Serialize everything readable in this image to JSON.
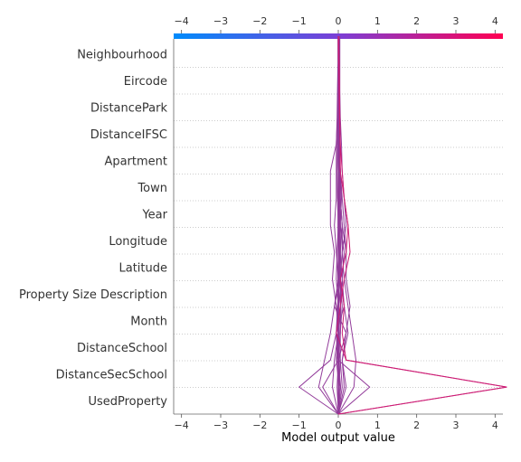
{
  "chart_data": {
    "type": "line",
    "xlabel": "Model output value",
    "xlim": [
      -4.2,
      4.2
    ],
    "xticks": [
      -4,
      -3,
      -2,
      -1,
      0,
      1,
      2,
      3,
      4
    ],
    "features": [
      "Neighbourhood",
      "Eircode",
      "DistancePark",
      "DistanceIFSC",
      "Apartment",
      "Town",
      "Year",
      "Longitude",
      "Latitude",
      "Property Size Description",
      "Month",
      "DistanceSchool",
      "DistanceSecSchool",
      "UsedProperty"
    ],
    "base_value": 0.0,
    "colorscale": [
      "#008bfb",
      "#ff0052"
    ],
    "grid": "dotted",
    "paths": [
      [
        0.0,
        0.0,
        0.0,
        0.01,
        0.01,
        0.0,
        0.0,
        0.0,
        0.0,
        0.0,
        0.0,
        0.01,
        0.0,
        0.0,
        0.0
      ],
      [
        0.0,
        0.0,
        0.01,
        0.0,
        0.0,
        0.01,
        0.01,
        0.0,
        0.01,
        0.0,
        0.0,
        0.0,
        0.01,
        0.01,
        0.0
      ],
      [
        0.0,
        0.0,
        0.01,
        0.02,
        0.01,
        0.02,
        0.01,
        0.02,
        0.02,
        0.01,
        0.01,
        0.01,
        0.02,
        0.02,
        0.02
      ],
      [
        0.0,
        0.01,
        0.02,
        0.0,
        0.01,
        0.02,
        0.03,
        0.03,
        0.02,
        0.02,
        0.03,
        0.03,
        0.02,
        0.03,
        0.03
      ],
      [
        0.0,
        0.0,
        0.0,
        -0.01,
        0.0,
        -0.01,
        0.0,
        -0.01,
        0.0,
        0.0,
        -0.01,
        0.0,
        0.0,
        0.0,
        0.0
      ],
      [
        0.0,
        0.02,
        0.05,
        0.05,
        0.06,
        0.05,
        0.05,
        0.05,
        0.04,
        0.04,
        0.03,
        0.03,
        0.03,
        0.03,
        0.02
      ],
      [
        0.0,
        -0.03,
        0.0,
        0.05,
        0.1,
        0.05,
        0.0,
        0.05,
        0.02,
        0.01,
        0.01,
        0.02,
        0.02,
        0.02,
        0.02
      ],
      [
        0.0,
        0.05,
        -0.02,
        -0.05,
        -0.02,
        0.05,
        0.02,
        0.0,
        -0.02,
        -0.03,
        -0.02,
        -0.01,
        0.0,
        0.0,
        0.0
      ],
      [
        0.0,
        0.1,
        0.05,
        -0.05,
        0.0,
        -0.05,
        -0.03,
        0.0,
        0.02,
        0.0,
        -0.02,
        -0.01,
        0.0,
        0.0,
        0.0
      ],
      [
        0.0,
        -0.15,
        -0.1,
        0.0,
        -0.05,
        -0.15,
        -0.1,
        -0.2,
        -0.2,
        -0.2,
        -0.05,
        -0.02,
        0.0,
        0.01,
        0.01
      ],
      [
        0.0,
        -0.5,
        -0.35,
        -0.2,
        -0.1,
        0.0,
        -0.05,
        -0.1,
        -0.05,
        -0.05,
        -0.05,
        -0.03,
        -0.02,
        -0.01,
        -0.01
      ],
      [
        0.0,
        -1.0,
        -0.2,
        -0.05,
        0.15,
        0.1,
        0.15,
        0.05,
        0.08,
        0.05,
        0.02,
        0.01,
        0.02,
        0.02,
        0.02
      ],
      [
        0.0,
        0.2,
        0.1,
        0.2,
        0.3,
        0.2,
        0.2,
        0.15,
        0.1,
        0.05,
        0.02,
        0.03,
        0.02,
        0.02,
        0.02
      ],
      [
        0.0,
        0.4,
        0.45,
        0.35,
        0.25,
        0.15,
        0.1,
        0.1,
        0.05,
        0.05,
        0.02,
        0.02,
        0.02,
        0.02,
        0.02
      ],
      [
        0.0,
        0.8,
        0.0,
        -0.05,
        0.05,
        0.0,
        0.05,
        0.1,
        0.05,
        0.05,
        0.03,
        0.02,
        0.02,
        0.02,
        0.02
      ],
      [
        0.0,
        0.15,
        0.1,
        0.25,
        0.15,
        0.05,
        0.2,
        0.1,
        0.05,
        0.03,
        0.02,
        0.02,
        0.01,
        0.01,
        0.01
      ],
      [
        0.0,
        -0.4,
        0.0,
        0.2,
        -0.1,
        0.05,
        0.1,
        0.2,
        0.15,
        0.1,
        0.08,
        0.05,
        0.04,
        0.04,
        0.04
      ],
      [
        0.0,
        0.02,
        -0.05,
        0.0,
        0.05,
        0.1,
        0.05,
        0.0,
        0.02,
        0.02,
        0.01,
        0.01,
        0.01,
        0.01,
        0.01
      ],
      [
        0.0,
        0.06,
        0.0,
        0.05,
        0.05,
        0.0,
        0.05,
        0.05,
        0.02,
        0.02,
        0.02,
        0.02,
        0.02,
        0.01,
        0.01
      ],
      [
        0.0,
        4.3,
        0.2,
        0.1,
        0.15,
        0.05,
        0.2,
        0.25,
        0.15,
        0.1,
        0.05,
        0.03,
        0.02,
        0.01,
        0.0
      ],
      [
        0.0,
        4.3,
        0.2,
        -0.05,
        0.05,
        0.15,
        0.3,
        0.25,
        0.15,
        0.05,
        0.05,
        0.04,
        0.03,
        0.02,
        0.01
      ]
    ]
  }
}
